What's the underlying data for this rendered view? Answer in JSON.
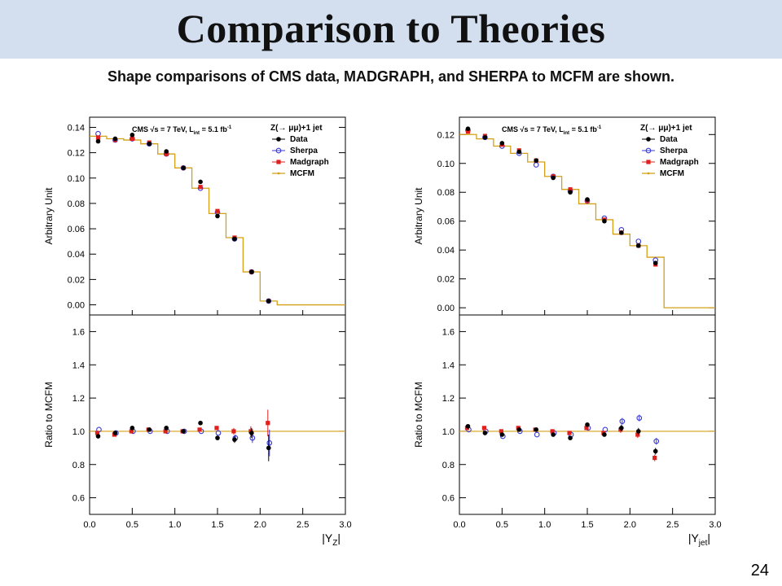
{
  "slide": {
    "title": "Comparison to Theories",
    "subtitle": "Shape comparisons of CMS data, MADGRAPH, and SHERPA to MCFM are shown.",
    "page_number": "24"
  },
  "colors": {
    "data": "#000000",
    "sherpa": "#3a3ad8",
    "madgraph": "#e0201c",
    "mcfm": "#d4a017",
    "title_bar": "#d3deee"
  },
  "chart_data": [
    {
      "type": "scatter",
      "panel": "left",
      "x_edges": [
        0,
        0.2,
        0.4,
        0.6,
        0.8,
        1.0,
        1.2,
        1.4,
        1.6,
        1.8,
        2.0,
        2.2,
        3.0
      ],
      "x_centers": [
        0.1,
        0.3,
        0.5,
        0.7,
        0.9,
        1.1,
        1.3,
        1.5,
        1.7,
        1.9,
        2.1
      ],
      "header": {
        "cms": "CMS",
        "sqrts": "√s = 7 TeV, L",
        "lint_sub": "int",
        "lumi": "= 5.1 fb",
        "lumi_sup": "-1",
        "process": "Z(→ μμ)+1 jet"
      },
      "legend": [
        "Data",
        "Sherpa",
        "Madgraph",
        "MCFM"
      ],
      "top": {
        "ylabel": "Arbitrary Unit",
        "ylim": [
          -0.008,
          0.148
        ],
        "yticks": [
          0.0,
          0.02,
          0.04,
          0.06,
          0.08,
          0.1,
          0.12,
          0.14
        ],
        "ytick_labels": [
          "0.00",
          "0.02",
          "0.04",
          "0.06",
          "0.08",
          "0.10",
          "0.12",
          "0.14"
        ],
        "mcfm": [
          0.133,
          0.131,
          0.13,
          0.127,
          0.119,
          0.108,
          0.092,
          0.072,
          0.053,
          0.026,
          0.003,
          0.0
        ],
        "data": [
          0.129,
          0.131,
          0.134,
          0.127,
          0.121,
          0.108,
          0.097,
          0.07,
          0.052,
          0.026,
          0.003
        ],
        "sherpa": [
          0.135,
          0.13,
          0.131,
          0.127,
          0.119,
          0.108,
          0.092,
          0.073,
          0.052,
          0.026,
          0.003
        ],
        "madgraph": [
          0.132,
          0.13,
          0.131,
          0.128,
          0.119,
          0.108,
          0.093,
          0.074,
          0.053,
          0.026,
          0.003
        ]
      },
      "bottom": {
        "ylabel": "Ratio to MCFM",
        "ylim": [
          0.5,
          1.7
        ],
        "yticks": [
          0.6,
          0.8,
          1.0,
          1.2,
          1.4,
          1.6
        ],
        "ytick_labels": [
          "0.6",
          "0.8",
          "1.0",
          "1.2",
          "1.4",
          "1.6"
        ],
        "data": [
          0.97,
          0.99,
          1.02,
          1.01,
          1.02,
          1.0,
          1.05,
          0.96,
          0.95,
          0.99,
          0.9
        ],
        "sherpa": [
          1.01,
          0.99,
          1.0,
          1.0,
          1.0,
          1.0,
          1.0,
          0.99,
          0.96,
          0.96,
          0.93
        ],
        "madgraph": [
          0.99,
          0.98,
          1.0,
          1.01,
          1.0,
          1.0,
          1.01,
          1.02,
          1.0,
          1.0,
          1.05
        ],
        "errors": [
          0.01,
          0.01,
          0.01,
          0.01,
          0.01,
          0.01,
          0.01,
          0.01,
          0.02,
          0.03,
          0.08
        ]
      },
      "x": {
        "xlim": [
          0,
          3
        ],
        "xticks": [
          0,
          0.5,
          1.0,
          1.5,
          2.0,
          2.5,
          3.0
        ],
        "xtick_labels": [
          "0.0",
          "0.5",
          "1.0",
          "1.5",
          "2.0",
          "2.5",
          "3.0"
        ],
        "xlabel": "|Y",
        "xlabel_sub": "Z",
        "xlabel_end": "|"
      }
    },
    {
      "type": "scatter",
      "panel": "right",
      "x_edges": [
        0,
        0.2,
        0.4,
        0.6,
        0.8,
        1.0,
        1.2,
        1.4,
        1.6,
        1.8,
        2.0,
        2.2,
        2.4,
        3.0
      ],
      "x_centers": [
        0.1,
        0.3,
        0.5,
        0.7,
        0.9,
        1.1,
        1.3,
        1.5,
        1.7,
        1.9,
        2.1,
        2.3
      ],
      "header": {
        "cms": "CMS",
        "sqrts": "√s = 7 TeV, L",
        "lint_sub": "int",
        "lumi": "= 5.1 fb",
        "lumi_sup": "-1",
        "process": "Z(→ μμ)+1 jet"
      },
      "legend": [
        "Data",
        "Sherpa",
        "Madgraph",
        "MCFM"
      ],
      "top": {
        "ylabel": "Arbitrary Unit",
        "ylim": [
          -0.005,
          0.132
        ],
        "yticks": [
          0.0,
          0.02,
          0.04,
          0.06,
          0.08,
          0.1,
          0.12
        ],
        "ytick_labels": [
          "0.00",
          "0.02",
          "0.04",
          "0.06",
          "0.08",
          "0.10",
          "0.12"
        ],
        "mcfm": [
          0.12,
          0.117,
          0.112,
          0.107,
          0.101,
          0.091,
          0.082,
          0.072,
          0.061,
          0.051,
          0.043,
          0.035,
          0.0
        ],
        "data": [
          0.124,
          0.118,
          0.114,
          0.108,
          0.102,
          0.09,
          0.08,
          0.075,
          0.06,
          0.052,
          0.043,
          0.031
        ],
        "sherpa": [
          0.123,
          0.118,
          0.112,
          0.107,
          0.099,
          0.091,
          0.081,
          0.074,
          0.062,
          0.054,
          0.046,
          0.033
        ],
        "madgraph": [
          0.122,
          0.119,
          0.113,
          0.109,
          0.102,
          0.091,
          0.082,
          0.074,
          0.061,
          0.052,
          0.043,
          0.03
        ]
      },
      "bottom": {
        "ylabel": "Ratio to MCFM",
        "ylim": [
          0.5,
          1.7
        ],
        "yticks": [
          0.6,
          0.8,
          1.0,
          1.2,
          1.4,
          1.6
        ],
        "ytick_labels": [
          "0.6",
          "0.8",
          "1.0",
          "1.2",
          "1.4",
          "1.6"
        ],
        "data": [
          1.03,
          0.99,
          0.98,
          1.01,
          1.01,
          0.98,
          0.96,
          1.04,
          0.98,
          1.02,
          1.0,
          0.88
        ],
        "sherpa": [
          1.01,
          1.0,
          0.97,
          1.0,
          0.98,
          0.99,
          0.98,
          1.02,
          1.01,
          1.06,
          1.08,
          0.94
        ],
        "madgraph": [
          1.02,
          1.02,
          1.0,
          1.02,
          1.01,
          1.0,
          0.99,
          1.02,
          0.99,
          1.01,
          0.98,
          0.84
        ],
        "errors": [
          0.01,
          0.01,
          0.01,
          0.01,
          0.01,
          0.01,
          0.01,
          0.01,
          0.01,
          0.02,
          0.02,
          0.02
        ]
      },
      "x": {
        "xlim": [
          0,
          3
        ],
        "xticks": [
          0,
          0.5,
          1.0,
          1.5,
          2.0,
          2.5,
          3.0
        ],
        "xtick_labels": [
          "0.0",
          "0.5",
          "1.0",
          "1.5",
          "2.0",
          "2.5",
          "3.0"
        ],
        "xlabel": "|Y",
        "xlabel_sub": "jet",
        "xlabel_end": "|"
      }
    }
  ]
}
